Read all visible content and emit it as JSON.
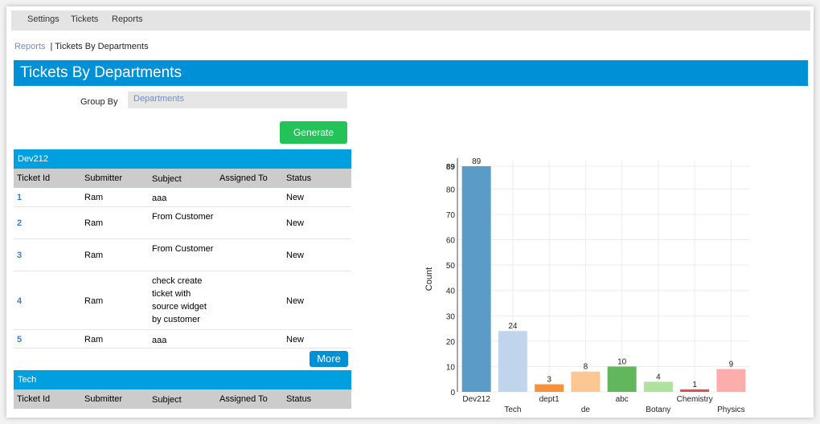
{
  "nav": {
    "items": [
      "Settings",
      "Tickets",
      "Reports"
    ]
  },
  "breadcrumb": {
    "parent": "Reports",
    "current": "Tickets By Departments"
  },
  "page_title": "Tickets By Departments",
  "form": {
    "group_by_label": "Group By",
    "group_by_value": "Departments",
    "generate_label": "Generate"
  },
  "columns": [
    "Ticket Id",
    "Submitter",
    "Subject",
    "Assigned To",
    "Status"
  ],
  "groups": [
    {
      "name": "Dev212",
      "rows": [
        {
          "id": "1",
          "submitter": "Ram",
          "subject": "aaa",
          "assigned": "",
          "status": "New"
        },
        {
          "id": "2",
          "submitter": "Ram",
          "subject": "From Customer",
          "assigned": "",
          "status": "New"
        },
        {
          "id": "3",
          "submitter": "Ram",
          "subject": "From Customer",
          "assigned": "",
          "status": "New"
        },
        {
          "id": "4",
          "submitter": "Ram",
          "subject": "check create ticket with source widget by customer",
          "assigned": "",
          "status": "New"
        },
        {
          "id": "5",
          "submitter": "Ram",
          "subject": "aaa",
          "assigned": "",
          "status": "New"
        }
      ],
      "more_label": "More"
    },
    {
      "name": "Tech",
      "rows": []
    }
  ],
  "chart_data": {
    "type": "bar",
    "categories": [
      "Dev212",
      "Tech",
      "dept1",
      "de",
      "abc",
      "Botany",
      "Chemistry",
      "Physics"
    ],
    "values": [
      89,
      24,
      3,
      8,
      10,
      4,
      1,
      9
    ],
    "colors": [
      "#5b9bc8",
      "#c0d4ec",
      "#f7923a",
      "#fdc793",
      "#62b65c",
      "#b1e29d",
      "#d9534f",
      "#fdaeac"
    ],
    "ylabel": "Count",
    "ylim": [
      0,
      89
    ],
    "yticks": [
      0,
      10,
      20,
      30,
      40,
      50,
      60,
      70,
      80,
      89
    ],
    "grid": true
  }
}
